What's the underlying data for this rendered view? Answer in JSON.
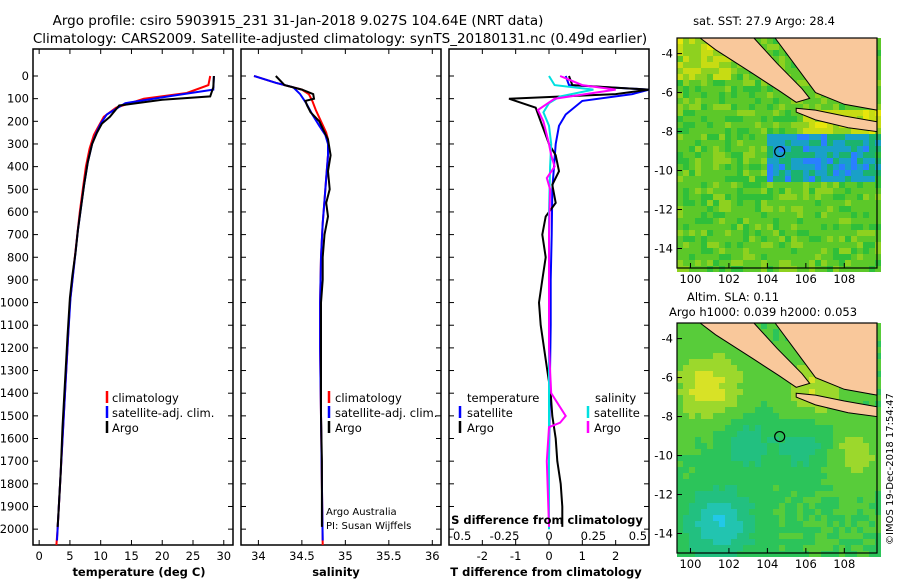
{
  "header": {
    "line1": "Argo profile: csiro 5903915_231 31-Jan-2018 9.027S 104.64E (NRT data)",
    "line2": "Climatology: CARS2009. Satellite-adjusted climatology: synTS_20180131.nc (0.49d earlier)"
  },
  "depth_ticks": [
    "0",
    "100",
    "200",
    "300",
    "400",
    "500",
    "600",
    "700",
    "800",
    "900",
    "1000",
    "1100",
    "1200",
    "1300",
    "1400",
    "1500",
    "1600",
    "1700",
    "1800",
    "1900",
    "2000"
  ],
  "legend": {
    "climatology": "climatology",
    "satellite_adj": "satellite-adj. clim.",
    "argo": "Argo",
    "temperature": "temperature",
    "salinity": "salinity",
    "satellite": "satellite"
  },
  "credits": {
    "line1": "Argo Australia",
    "line2": "PI: Susan Wijffels"
  },
  "diff_panel": {
    "s_title": "S difference from climatology",
    "s_ticks": [
      "-0.5",
      "-0.25",
      "0",
      "0.25",
      "0.5"
    ]
  },
  "maps": {
    "sst_title": "sat. SST: 27.9 Argo: 28.4",
    "sla_title1": "Altim. SLA: 0.11",
    "sla_title2": "Argo h1000: 0.039 h2000: 0.053",
    "lat_ticks": [
      "-4",
      "-6",
      "-8",
      "-10",
      "-12",
      "-14"
    ],
    "lon_ticks": [
      "100",
      "102",
      "104",
      "106",
      "108"
    ],
    "float_lon": 104.64,
    "float_lat": -9.027
  },
  "watermark": "©IMOS 19-Dec-2018 17:54:47",
  "colors": {
    "climatology": "#ff0000",
    "satellite": "#0000ff",
    "argo": "#000000",
    "satellite_s": "#00e0e0",
    "argo_s": "#ff00ff",
    "land": "#f9c89b"
  },
  "chart_data": [
    {
      "type": "line",
      "xlabel": "temperature (deg C)",
      "ylabel": "",
      "xlim": [
        -1,
        31.5
      ],
      "ylim": [
        2070,
        0
      ],
      "x_ticks": [
        "0",
        "5",
        "10",
        "15",
        "20",
        "25",
        "30"
      ],
      "series": [
        {
          "name": "climatology",
          "color": "#ff0000",
          "points": [
            [
              27.8,
              0
            ],
            [
              27.5,
              40
            ],
            [
              24,
              75
            ],
            [
              17,
              100
            ],
            [
              12.5,
              140
            ],
            [
              10.5,
              180
            ],
            [
              9.7,
              220
            ],
            [
              8.9,
              260
            ],
            [
              8.2,
              320
            ],
            [
              7.6,
              400
            ],
            [
              7.1,
              500
            ],
            [
              6.6,
              600
            ],
            [
              6.2,
              700
            ],
            [
              5.8,
              800
            ],
            [
              5.4,
              900
            ],
            [
              5.0,
              1000
            ],
            [
              4.6,
              1200
            ],
            [
              4.2,
              1400
            ],
            [
              3.8,
              1600
            ],
            [
              3.4,
              1800
            ],
            [
              3.0,
              2000
            ],
            [
              2.8,
              2070
            ]
          ]
        },
        {
          "name": "satellite-adj. clim.",
          "color": "#0000ff",
          "points": [
            [
              28.4,
              0
            ],
            [
              28.3,
              60
            ],
            [
              21,
              90
            ],
            [
              14,
              120
            ],
            [
              11,
              170
            ],
            [
              10.0,
              210
            ],
            [
              9.3,
              250
            ],
            [
              8.6,
              300
            ],
            [
              7.9,
              380
            ],
            [
              7.3,
              480
            ],
            [
              6.8,
              580
            ],
            [
              6.3,
              680
            ],
            [
              5.9,
              780
            ],
            [
              5.5,
              880
            ],
            [
              5.1,
              980
            ],
            [
              4.7,
              1150
            ],
            [
              4.3,
              1350
            ],
            [
              3.9,
              1550
            ],
            [
              3.5,
              1750
            ],
            [
              3.1,
              1950
            ],
            [
              2.9,
              2050
            ]
          ]
        },
        {
          "name": "Argo",
          "color": "#000000",
          "points": [
            [
              28.4,
              0
            ],
            [
              28.3,
              50
            ],
            [
              27.8,
              90
            ],
            [
              20,
              105
            ],
            [
              13,
              130
            ],
            [
              11.5,
              180
            ],
            [
              10.2,
              210
            ],
            [
              9.4,
              250
            ],
            [
              8.6,
              300
            ],
            [
              7.9,
              380
            ],
            [
              7.3,
              480
            ],
            [
              6.8,
              580
            ],
            [
              6.3,
              680
            ],
            [
              5.9,
              780
            ],
            [
              5.4,
              880
            ],
            [
              5.0,
              980
            ],
            [
              4.6,
              1150
            ],
            [
              4.2,
              1350
            ],
            [
              3.8,
              1550
            ],
            [
              3.5,
              1750
            ],
            [
              3.1,
              1950
            ],
            [
              3.0,
              1990
            ]
          ]
        }
      ]
    },
    {
      "type": "line",
      "xlabel": "salinity",
      "ylabel": "",
      "xlim": [
        33.8,
        36.1
      ],
      "ylim": [
        2070,
        0
      ],
      "x_ticks": [
        "34",
        "34.5",
        "35",
        "35.5",
        "36"
      ],
      "series": [
        {
          "name": "climatology",
          "color": "#ff0000",
          "points": [
            [
              33.95,
              0
            ],
            [
              34.2,
              30
            ],
            [
              34.5,
              60
            ],
            [
              34.58,
              80
            ],
            [
              34.62,
              110
            ],
            [
              34.66,
              150
            ],
            [
              34.72,
              200
            ],
            [
              34.78,
              250
            ],
            [
              34.8,
              280
            ],
            [
              34.8,
              350
            ],
            [
              34.78,
              450
            ],
            [
              34.76,
              550
            ],
            [
              34.74,
              650
            ],
            [
              34.72,
              800
            ],
            [
              34.71,
              1000
            ],
            [
              34.71,
              1200
            ],
            [
              34.72,
              1500
            ],
            [
              34.73,
              1800
            ],
            [
              34.74,
              2070
            ]
          ]
        },
        {
          "name": "satellite-adj. clim.",
          "color": "#0000ff",
          "points": [
            [
              33.95,
              0
            ],
            [
              34.2,
              30
            ],
            [
              34.4,
              50
            ],
            [
              34.48,
              80
            ],
            [
              34.55,
              120
            ],
            [
              34.62,
              170
            ],
            [
              34.7,
              220
            ],
            [
              34.77,
              260
            ],
            [
              34.8,
              300
            ],
            [
              34.8,
              350
            ],
            [
              34.78,
              450
            ],
            [
              34.76,
              550
            ],
            [
              34.74,
              650
            ],
            [
              34.72,
              800
            ],
            [
              34.71,
              1000
            ],
            [
              34.71,
              1200
            ],
            [
              34.72,
              1500
            ],
            [
              34.73,
              1800
            ],
            [
              34.74,
              2050
            ]
          ]
        },
        {
          "name": "Argo",
          "color": "#000000",
          "points": [
            [
              34.2,
              0
            ],
            [
              34.3,
              40
            ],
            [
              34.5,
              60
            ],
            [
              34.63,
              80
            ],
            [
              34.64,
              100
            ],
            [
              34.54,
              110
            ],
            [
              34.56,
              130
            ],
            [
              34.6,
              160
            ],
            [
              34.7,
              200
            ],
            [
              34.75,
              240
            ],
            [
              34.8,
              280
            ],
            [
              34.83,
              350
            ],
            [
              34.8,
              420
            ],
            [
              34.82,
              500
            ],
            [
              34.78,
              560
            ],
            [
              34.8,
              620
            ],
            [
              34.76,
              700
            ],
            [
              34.74,
              800
            ],
            [
              34.74,
              900
            ],
            [
              34.72,
              1000
            ],
            [
              34.72,
              1150
            ],
            [
              34.72,
              1300
            ],
            [
              34.72,
              1500
            ],
            [
              34.73,
              1700
            ],
            [
              34.73,
              1900
            ],
            [
              34.73,
              1990
            ]
          ]
        }
      ]
    },
    {
      "type": "line",
      "xlabel": "T difference from climatology",
      "ylabel": "",
      "xlim": [
        -3,
        3
      ],
      "ylim": [
        2070,
        0
      ],
      "x_ticks": [
        "-2",
        "-1",
        "0",
        "1",
        "2"
      ],
      "series": [
        {
          "name": "satellite",
          "color": "#0000ff",
          "points": [
            [
              0.5,
              0
            ],
            [
              0.6,
              40
            ],
            [
              3.0,
              60
            ],
            [
              2.5,
              80
            ],
            [
              1.0,
              110
            ],
            [
              0.5,
              170
            ],
            [
              0.3,
              220
            ],
            [
              0.2,
              300
            ],
            [
              0.15,
              400
            ],
            [
              0.1,
              500
            ],
            [
              0.08,
              700
            ],
            [
              0.05,
              900
            ],
            [
              0.05,
              1100
            ],
            [
              0.02,
              1400
            ],
            [
              0.0,
              1700
            ],
            [
              0.0,
              2000
            ]
          ]
        },
        {
          "name": "Argo",
          "color": "#000000",
          "points": [
            [
              0.6,
              0
            ],
            [
              0.7,
              40
            ],
            [
              3.0,
              60
            ],
            [
              2.0,
              80
            ],
            [
              -1.2,
              100
            ],
            [
              -0.8,
              120
            ],
            [
              -0.4,
              140
            ],
            [
              -0.3,
              180
            ],
            [
              -0.2,
              220
            ],
            [
              -0.1,
              260
            ],
            [
              0.0,
              300
            ],
            [
              0.2,
              350
            ],
            [
              0.3,
              420
            ],
            [
              0.1,
              480
            ],
            [
              0.2,
              560
            ],
            [
              -0.1,
              620
            ],
            [
              -0.2,
              700
            ],
            [
              -0.1,
              800
            ],
            [
              -0.2,
              900
            ],
            [
              -0.3,
              1000
            ],
            [
              -0.25,
              1100
            ],
            [
              -0.15,
              1200
            ],
            [
              -0.05,
              1300
            ],
            [
              0.05,
              1400
            ],
            [
              0.1,
              1500
            ],
            [
              0.2,
              1600
            ],
            [
              0.25,
              1700
            ],
            [
              0.35,
              1800
            ],
            [
              0.4,
              1900
            ],
            [
              0.4,
              1990
            ]
          ]
        }
      ]
    }
  ]
}
